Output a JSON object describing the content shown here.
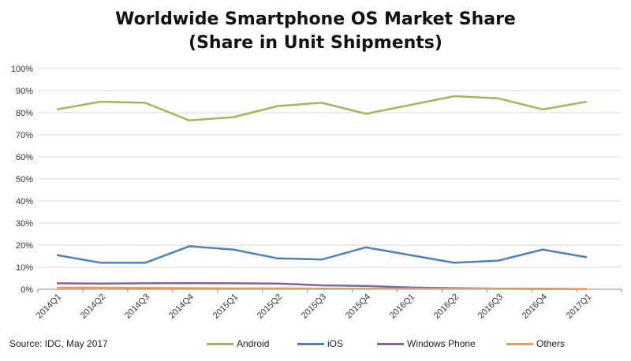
{
  "chart_data": {
    "type": "line",
    "title": [
      "Worldwide Smartphone OS Market Share",
      "(Share in Unit Shipments)"
    ],
    "categories": [
      "2014Q1",
      "2014Q2",
      "2014Q3",
      "2014Q4",
      "2015Q1",
      "2015Q2",
      "2015Q3",
      "2015Q4",
      "2016Q1",
      "2016Q2",
      "2016Q3",
      "2016Q4",
      "2017Q1"
    ],
    "ylim": [
      0,
      100
    ],
    "yticks": [
      "0%",
      "10%",
      "20%",
      "30%",
      "40%",
      "50%",
      "60%",
      "70%",
      "80%",
      "90%",
      "100%"
    ],
    "grid": true,
    "legend_position": "bottom",
    "source": "Source: IDC, May 2017",
    "series": [
      {
        "name": "Android",
        "color": "#9bbb59",
        "values": [
          81.5,
          85,
          84.5,
          76.5,
          78,
          83,
          84.5,
          79.5,
          83.5,
          87.5,
          86.5,
          81.5,
          85
        ]
      },
      {
        "name": "iOS",
        "color": "#4f81bd",
        "values": [
          15.5,
          12,
          12,
          19.5,
          18,
          14,
          13.5,
          19,
          15.5,
          12,
          13,
          18,
          14.5
        ]
      },
      {
        "name": "Windows Phone",
        "color": "#8064a2",
        "values": [
          2.7,
          2.6,
          2.7,
          2.8,
          2.7,
          2.6,
          1.8,
          1.5,
          0.8,
          0.5,
          0.3,
          0.2,
          0.1
        ]
      },
      {
        "name": "Others",
        "color": "#f79646",
        "values": [
          0.7,
          0.7,
          0.6,
          0.5,
          0.4,
          0.4,
          0.3,
          0.3,
          0.3,
          0.2,
          0.2,
          0.1,
          0.1
        ]
      }
    ]
  }
}
